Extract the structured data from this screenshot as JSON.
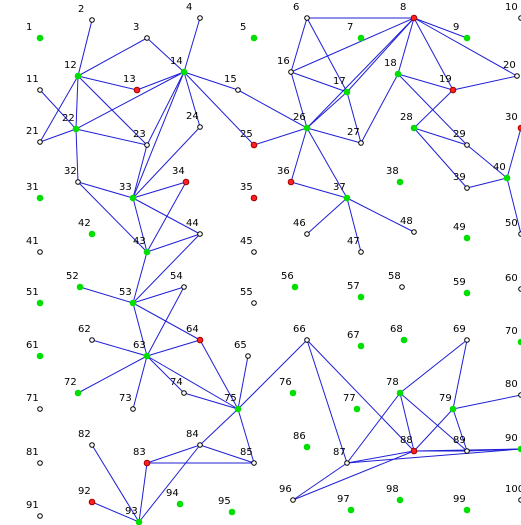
{
  "colors": {
    "edge": "#1f1fd6",
    "green_node": "#00e000",
    "red_node": "#ff2020",
    "open_node_stroke": "#000000"
  },
  "nodes": [
    {
      "id": "1",
      "type": "green"
    },
    {
      "id": "2",
      "type": "open"
    },
    {
      "id": "3",
      "type": "open"
    },
    {
      "id": "4",
      "type": "open"
    },
    {
      "id": "5",
      "type": "green"
    },
    {
      "id": "6",
      "type": "open"
    },
    {
      "id": "7",
      "type": "green"
    },
    {
      "id": "8",
      "type": "red"
    },
    {
      "id": "9",
      "type": "green"
    },
    {
      "id": "10",
      "type": "open"
    },
    {
      "id": "11",
      "type": "open"
    },
    {
      "id": "12",
      "type": "green"
    },
    {
      "id": "13",
      "type": "red"
    },
    {
      "id": "14",
      "type": "green"
    },
    {
      "id": "15",
      "type": "open"
    },
    {
      "id": "16",
      "type": "open"
    },
    {
      "id": "17",
      "type": "green"
    },
    {
      "id": "18",
      "type": "green"
    },
    {
      "id": "19",
      "type": "red"
    },
    {
      "id": "20",
      "type": "open"
    },
    {
      "id": "21",
      "type": "open"
    },
    {
      "id": "22",
      "type": "green"
    },
    {
      "id": "23",
      "type": "open"
    },
    {
      "id": "24",
      "type": "open"
    },
    {
      "id": "25",
      "type": "red"
    },
    {
      "id": "26",
      "type": "green"
    },
    {
      "id": "27",
      "type": "open"
    },
    {
      "id": "28",
      "type": "green"
    },
    {
      "id": "29",
      "type": "open"
    },
    {
      "id": "30",
      "type": "red"
    },
    {
      "id": "31",
      "type": "green"
    },
    {
      "id": "32",
      "type": "open"
    },
    {
      "id": "33",
      "type": "green"
    },
    {
      "id": "34",
      "type": "red"
    },
    {
      "id": "35",
      "type": "red"
    },
    {
      "id": "36",
      "type": "red"
    },
    {
      "id": "37",
      "type": "green"
    },
    {
      "id": "38",
      "type": "green"
    },
    {
      "id": "39",
      "type": "open"
    },
    {
      "id": "40",
      "type": "green"
    },
    {
      "id": "41",
      "type": "open"
    },
    {
      "id": "42",
      "type": "green"
    },
    {
      "id": "43",
      "type": "green"
    },
    {
      "id": "44",
      "type": "open"
    },
    {
      "id": "45",
      "type": "open"
    },
    {
      "id": "46",
      "type": "open"
    },
    {
      "id": "47",
      "type": "open"
    },
    {
      "id": "48",
      "type": "open"
    },
    {
      "id": "49",
      "type": "green"
    },
    {
      "id": "50",
      "type": "open"
    },
    {
      "id": "51",
      "type": "green"
    },
    {
      "id": "52",
      "type": "green"
    },
    {
      "id": "53",
      "type": "green"
    },
    {
      "id": "54",
      "type": "open"
    },
    {
      "id": "55",
      "type": "open"
    },
    {
      "id": "56",
      "type": "green"
    },
    {
      "id": "57",
      "type": "green"
    },
    {
      "id": "58",
      "type": "open"
    },
    {
      "id": "59",
      "type": "green"
    },
    {
      "id": "60",
      "type": "open"
    },
    {
      "id": "61",
      "type": "green"
    },
    {
      "id": "62",
      "type": "open"
    },
    {
      "id": "63",
      "type": "green"
    },
    {
      "id": "64",
      "type": "red"
    },
    {
      "id": "65",
      "type": "open"
    },
    {
      "id": "66",
      "type": "open"
    },
    {
      "id": "67",
      "type": "green"
    },
    {
      "id": "68",
      "type": "green"
    },
    {
      "id": "69",
      "type": "open"
    },
    {
      "id": "70",
      "type": "green"
    },
    {
      "id": "71",
      "type": "open"
    },
    {
      "id": "72",
      "type": "green"
    },
    {
      "id": "73",
      "type": "open"
    },
    {
      "id": "74",
      "type": "open"
    },
    {
      "id": "75",
      "type": "green"
    },
    {
      "id": "76",
      "type": "green"
    },
    {
      "id": "77",
      "type": "green"
    },
    {
      "id": "78",
      "type": "green"
    },
    {
      "id": "79",
      "type": "green"
    },
    {
      "id": "80",
      "type": "open"
    },
    {
      "id": "81",
      "type": "open"
    },
    {
      "id": "82",
      "type": "open"
    },
    {
      "id": "83",
      "type": "red"
    },
    {
      "id": "84",
      "type": "open"
    },
    {
      "id": "85",
      "type": "open"
    },
    {
      "id": "86",
      "type": "green"
    },
    {
      "id": "87",
      "type": "open"
    },
    {
      "id": "88",
      "type": "red"
    },
    {
      "id": "89",
      "type": "open"
    },
    {
      "id": "90",
      "type": "green"
    },
    {
      "id": "91",
      "type": "open"
    },
    {
      "id": "92",
      "type": "red"
    },
    {
      "id": "93",
      "type": "green"
    },
    {
      "id": "94",
      "type": "green"
    },
    {
      "id": "95",
      "type": "green"
    },
    {
      "id": "96",
      "type": "open"
    },
    {
      "id": "97",
      "type": "green"
    },
    {
      "id": "98",
      "type": "green"
    },
    {
      "id": "99",
      "type": "green"
    },
    {
      "id": "100",
      "type": "open"
    }
  ],
  "edges": [
    [
      "2",
      "12"
    ],
    [
      "3",
      "12"
    ],
    [
      "3",
      "14"
    ],
    [
      "4",
      "14"
    ],
    [
      "11",
      "22"
    ],
    [
      "12",
      "13"
    ],
    [
      "12",
      "22"
    ],
    [
      "12",
      "23"
    ],
    [
      "12",
      "21"
    ],
    [
      "13",
      "14"
    ],
    [
      "14",
      "15"
    ],
    [
      "14",
      "23"
    ],
    [
      "14",
      "24"
    ],
    [
      "14",
      "25"
    ],
    [
      "14",
      "33"
    ],
    [
      "14",
      "22"
    ],
    [
      "15",
      "26"
    ],
    [
      "21",
      "22"
    ],
    [
      "22",
      "23"
    ],
    [
      "22",
      "32"
    ],
    [
      "23",
      "33"
    ],
    [
      "24",
      "33"
    ],
    [
      "6",
      "16"
    ],
    [
      "6",
      "17"
    ],
    [
      "6",
      "8"
    ],
    [
      "8",
      "16"
    ],
    [
      "8",
      "17"
    ],
    [
      "8",
      "18"
    ],
    [
      "8",
      "19"
    ],
    [
      "8",
      "20"
    ],
    [
      "8",
      "26"
    ],
    [
      "8",
      "9"
    ],
    [
      "16",
      "26"
    ],
    [
      "16",
      "17"
    ],
    [
      "17",
      "26"
    ],
    [
      "17",
      "27"
    ],
    [
      "18",
      "19"
    ],
    [
      "18",
      "27"
    ],
    [
      "18",
      "29"
    ],
    [
      "19",
      "28"
    ],
    [
      "19",
      "20"
    ],
    [
      "25",
      "26"
    ],
    [
      "26",
      "27"
    ],
    [
      "26",
      "37"
    ],
    [
      "26",
      "36"
    ],
    [
      "28",
      "29"
    ],
    [
      "28",
      "39"
    ],
    [
      "29",
      "40"
    ],
    [
      "30",
      "40"
    ],
    [
      "40",
      "50"
    ],
    [
      "40",
      "39"
    ],
    [
      "32",
      "33"
    ],
    [
      "32",
      "43"
    ],
    [
      "33",
      "34"
    ],
    [
      "33",
      "44"
    ],
    [
      "33",
      "43"
    ],
    [
      "34",
      "43"
    ],
    [
      "43",
      "44"
    ],
    [
      "43",
      "53"
    ],
    [
      "36",
      "37"
    ],
    [
      "37",
      "46"
    ],
    [
      "37",
      "47"
    ],
    [
      "37",
      "48"
    ],
    [
      "44",
      "53"
    ],
    [
      "53",
      "54"
    ],
    [
      "53",
      "52"
    ],
    [
      "53",
      "63"
    ],
    [
      "53",
      "64"
    ],
    [
      "54",
      "63"
    ],
    [
      "62",
      "63"
    ],
    [
      "63",
      "64"
    ],
    [
      "63",
      "72"
    ],
    [
      "63",
      "73"
    ],
    [
      "63",
      "74"
    ],
    [
      "63",
      "75"
    ],
    [
      "64",
      "75"
    ],
    [
      "74",
      "75"
    ],
    [
      "65",
      "75"
    ],
    [
      "66",
      "75"
    ],
    [
      "66",
      "87"
    ],
    [
      "66",
      "88"
    ],
    [
      "75",
      "84"
    ],
    [
      "75",
      "85"
    ],
    [
      "78",
      "88"
    ],
    [
      "78",
      "87"
    ],
    [
      "78",
      "69"
    ],
    [
      "78",
      "89"
    ],
    [
      "69",
      "79"
    ],
    [
      "79",
      "80"
    ],
    [
      "79",
      "88"
    ],
    [
      "79",
      "89"
    ],
    [
      "87",
      "88"
    ],
    [
      "88",
      "90"
    ],
    [
      "88",
      "89"
    ],
    [
      "89",
      "90"
    ],
    [
      "87",
      "90"
    ],
    [
      "96",
      "88"
    ],
    [
      "96",
      "87"
    ],
    [
      "82",
      "93"
    ],
    [
      "83",
      "93"
    ],
    [
      "83",
      "85"
    ],
    [
      "84",
      "85"
    ],
    [
      "84",
      "93"
    ],
    [
      "83",
      "84"
    ],
    [
      "92",
      "93"
    ]
  ]
}
